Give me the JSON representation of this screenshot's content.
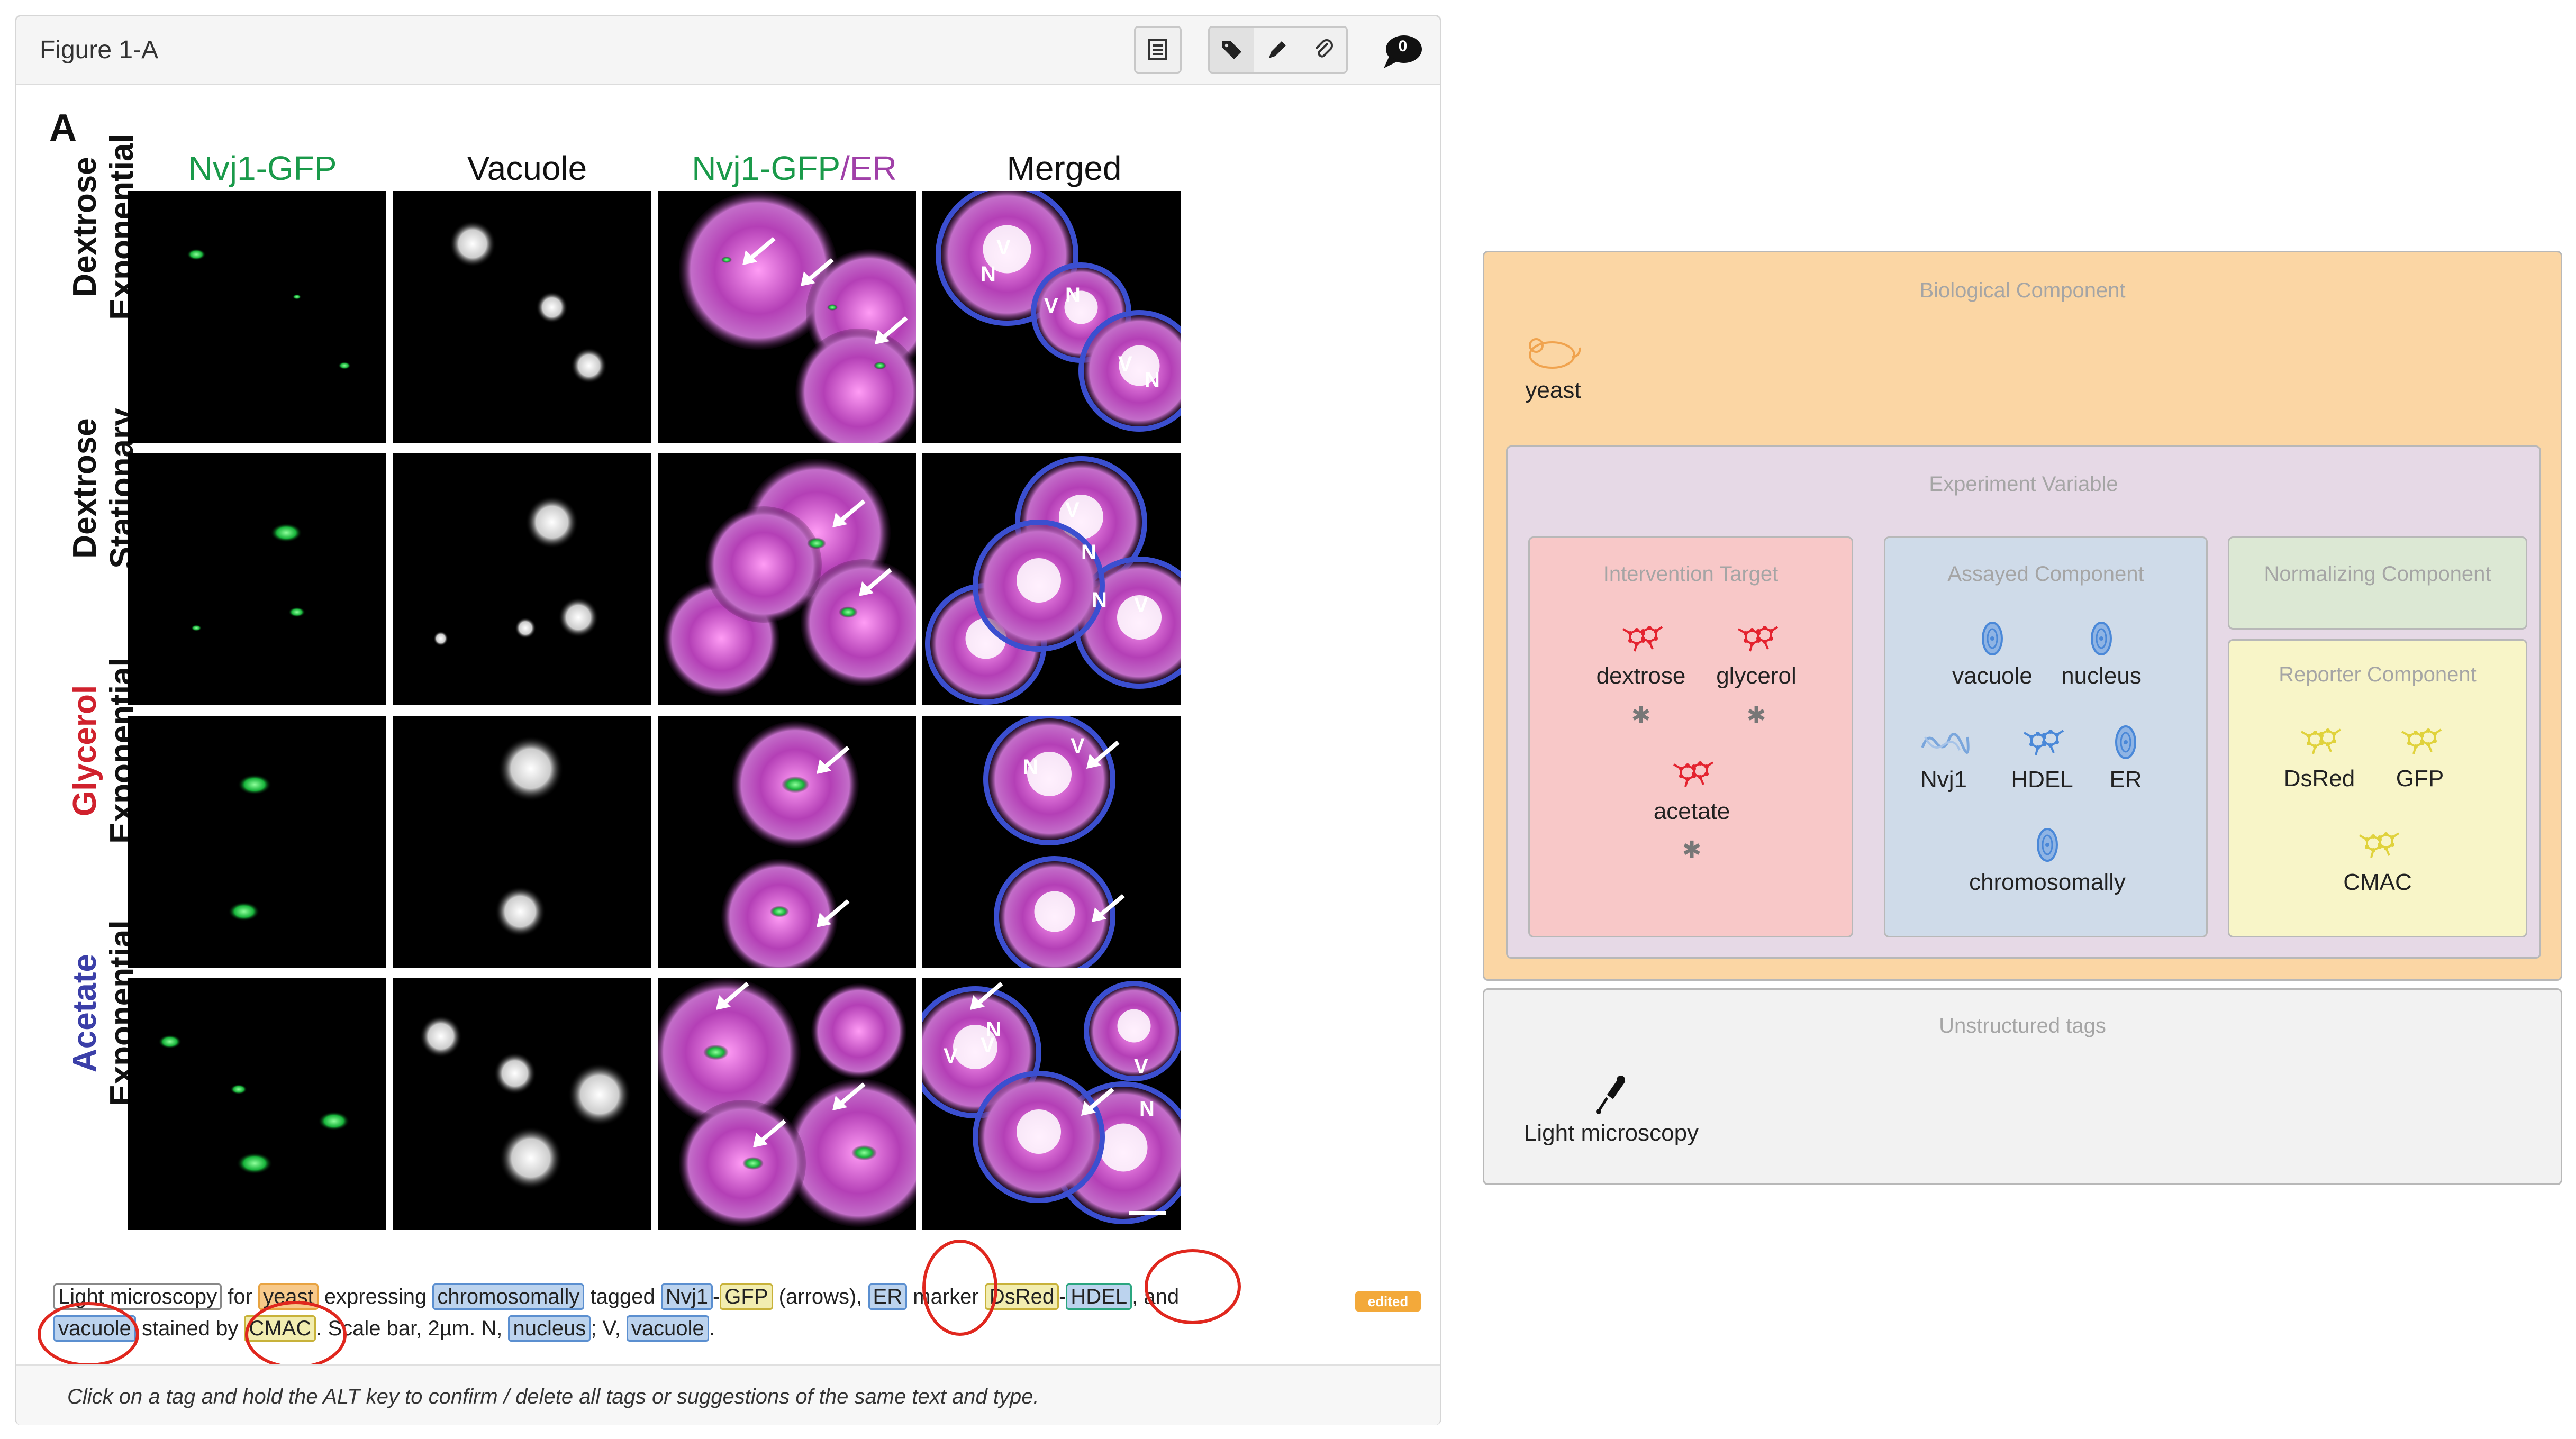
{
  "panel": {
    "title": "Figure 1-A",
    "toolbar": [
      "notes-icon",
      "tag-icon",
      "pencil-icon",
      "paperclip-icon"
    ],
    "comment_count": "0"
  },
  "figure": {
    "letter": "A",
    "column_headers": {
      "c1": "Nvj1-GFP",
      "c2": "Vacuole",
      "c3a": "Nvj1-GFP",
      "c3sep": "/",
      "c3b": "ER",
      "c4": "Merged"
    },
    "rows": [
      {
        "top": "Dextrose",
        "bottom": "Exponential"
      },
      {
        "top": "Dextrose",
        "bottom": "Stationary"
      },
      {
        "top": "Glycerol",
        "bottom": "Exponential"
      },
      {
        "top": "Acetate",
        "bottom": "Exponential"
      }
    ],
    "markers": {
      "v": "V",
      "n": "N"
    }
  },
  "caption": {
    "light_microscopy": "Light microscopy",
    "for": "for",
    "yeast": "yeast",
    "expressing": "expressing",
    "chromosomally": "chromosomally",
    "tagged": "tagged",
    "nvj1": "Nvj1",
    "dash": "-",
    "gfp": "GFP",
    "arrows": "(arrows),",
    "er": "ER",
    "marker": "marker",
    "dsred": "DsRed",
    "hdel": "HDEL",
    "and": ", and",
    "vacuole": "vacuole",
    "stained_by": "stained by",
    "cmac": "CMAC",
    "scale": ". Scale bar, 2µm. N,",
    "nucleus": "nucleus",
    "v_sep": "; V,",
    "vacuole2": "vacuole",
    "end": "."
  },
  "edited_badge": "edited",
  "footer": "Click on a tag and hold the ALT key to confirm / delete all tags or suggestions of the same text and type.",
  "tags_panel": {
    "biological": {
      "label": "Biological Component",
      "item": "yeast"
    },
    "experiment": {
      "label": "Experiment Variable"
    },
    "intervention": {
      "label": "Intervention Target",
      "items": [
        "dextrose",
        "glycerol",
        "acetate"
      ]
    },
    "assayed": {
      "label": "Assayed Component",
      "items": [
        "vacuole",
        "nucleus",
        "Nvj1",
        "HDEL",
        "ER",
        "chromosomally"
      ]
    },
    "normalizing": {
      "label": "Normalizing Component"
    },
    "reporter": {
      "label": "Reporter Component",
      "items": [
        "DsRed",
        "GFP",
        "CMAC"
      ]
    },
    "unstructured": {
      "label": "Unstructured tags",
      "item": "Light microscopy"
    }
  },
  "colors": {
    "biological_bg": "#fbd6a4",
    "experiment_bg": "#e6d9e6",
    "intervention_bg": "#f8c8c8",
    "assayed_bg": "#cfdbe9",
    "normalizing_bg": "#dce8d4",
    "reporter_bg": "#f8f5c8",
    "unstructured_bg": "#f2f2f2",
    "molecule_red": "#e4232f",
    "cell_blue": "#4a88d8",
    "reporter_yellow": "#e0d23c",
    "gfp_green": "#1a9a4a",
    "er_purple": "#a040a8",
    "glycerol_red": "#d0212d",
    "acetate_blue": "#3b3fa8"
  }
}
